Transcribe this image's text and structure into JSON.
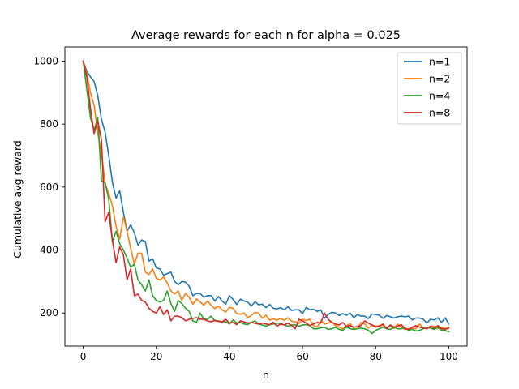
{
  "chart_data": {
    "type": "line",
    "title": "Average rewards for each n for alpha = 0.025",
    "xlabel": "n",
    "ylabel": "Cumulative avg reward",
    "xlim": [
      -5,
      105
    ],
    "ylim": [
      95,
      1045
    ],
    "x_ticks": [
      0,
      20,
      40,
      60,
      80,
      100
    ],
    "y_ticks": [
      200,
      400,
      600,
      800,
      1000
    ],
    "x_tick_labels": [
      "0",
      "20",
      "40",
      "60",
      "80",
      "100"
    ],
    "y_tick_labels": [
      "200",
      "400",
      "600",
      "800",
      "1000"
    ],
    "grid": false,
    "legend_position": "top-right",
    "x": [
      0,
      1,
      2,
      3,
      4,
      5,
      6,
      7,
      8,
      9,
      10,
      11,
      12,
      13,
      14,
      15,
      16,
      17,
      18,
      19,
      20,
      21,
      22,
      23,
      24,
      25,
      26,
      27,
      28,
      29,
      30,
      31,
      32,
      33,
      34,
      35,
      36,
      37,
      38,
      39,
      40,
      41,
      42,
      43,
      44,
      45,
      46,
      47,
      48,
      49,
      50,
      51,
      52,
      53,
      54,
      55,
      56,
      57,
      58,
      59,
      60,
      61,
      62,
      63,
      64,
      65,
      66,
      67,
      68,
      69,
      70,
      71,
      72,
      73,
      74,
      75,
      76,
      77,
      78,
      79,
      80,
      81,
      82,
      83,
      84,
      85,
      86,
      87,
      88,
      89,
      90,
      91,
      92,
      93,
      94,
      95,
      96,
      97,
      98,
      99,
      100
    ],
    "series": [
      {
        "name": "n=1",
        "color": "#1f77b4",
        "values": [
          1000,
          968,
          950,
          935,
          890,
          815,
          775,
          700,
          615,
          565,
          588,
          520,
          460,
          480,
          455,
          415,
          432,
          427,
          365,
          372,
          343,
          340,
          320,
          325,
          330,
          300,
          290,
          300,
          298,
          285,
          255,
          262,
          262,
          250,
          255,
          255,
          238,
          252,
          238,
          228,
          255,
          243,
          227,
          244,
          238,
          235,
          222,
          236,
          226,
          228,
          217,
          227,
          215,
          213,
          217,
          210,
          220,
          208,
          210,
          210,
          198,
          218,
          210,
          212,
          205,
          210,
          183,
          195,
          202,
          200,
          192,
          198,
          193,
          200,
          185,
          195,
          190,
          190,
          182,
          197,
          195,
          193,
          183,
          192,
          188,
          184,
          188,
          190,
          188,
          190,
          178,
          184,
          184,
          180,
          168,
          180,
          178,
          185,
          170,
          185,
          165
        ]
      },
      {
        "name": "n=2",
        "color": "#ff7f0e",
        "values": [
          1000,
          960,
          900,
          860,
          770,
          710,
          610,
          580,
          540,
          475,
          435,
          505,
          460,
          405,
          355,
          390,
          390,
          330,
          322,
          340,
          310,
          305,
          315,
          295,
          270,
          260,
          270,
          240,
          262,
          250,
          228,
          245,
          235,
          225,
          238,
          225,
          214,
          222,
          210,
          203,
          218,
          215,
          198,
          196,
          200,
          185,
          192,
          202,
          200,
          183,
          193,
          177,
          182,
          177,
          183,
          176,
          185,
          174,
          172,
          167,
          180,
          176,
          180,
          160,
          155,
          175,
          165,
          168,
          172,
          160,
          155,
          150,
          158,
          167,
          150,
          150,
          170,
          165,
          152,
          162,
          158,
          160,
          160,
          152,
          160,
          150,
          165,
          155,
          148,
          150,
          152,
          150,
          165,
          152,
          150,
          158,
          158,
          150,
          155,
          150,
          155
        ]
      },
      {
        "name": "n=4",
        "color": "#2ca02c",
        "values": [
          1000,
          910,
          820,
          780,
          822,
          620,
          615,
          560,
          425,
          460,
          420,
          400,
          375,
          345,
          355,
          305,
          290,
          270,
          305,
          255,
          240,
          235,
          240,
          270,
          230,
          205,
          240,
          230,
          215,
          205,
          175,
          170,
          200,
          180,
          180,
          190,
          175,
          175,
          172,
          172,
          165,
          178,
          168,
          170,
          165,
          163,
          170,
          175,
          165,
          162,
          158,
          163,
          165,
          168,
          167,
          162,
          158,
          162,
          162,
          158,
          162,
          163,
          160,
          150,
          150,
          153,
          155,
          148,
          150,
          155,
          148,
          145,
          155,
          150,
          148,
          150,
          152,
          150,
          145,
          135,
          145,
          150,
          155,
          150,
          148,
          155,
          150,
          150,
          153,
          145,
          148,
          143,
          145,
          150,
          153,
          152,
          148,
          155,
          145,
          145,
          140
        ]
      },
      {
        "name": "n=8",
        "color": "#d62728",
        "values": [
          1000,
          950,
          850,
          770,
          810,
          750,
          490,
          520,
          430,
          360,
          410,
          385,
          305,
          340,
          255,
          260,
          240,
          235,
          215,
          205,
          200,
          220,
          195,
          210,
          175,
          190,
          190,
          185,
          175,
          180,
          183,
          185,
          180,
          180,
          175,
          172,
          177,
          173,
          172,
          180,
          168,
          170,
          163,
          175,
          172,
          168,
          170,
          167,
          165,
          168,
          165,
          163,
          170,
          158,
          165,
          162,
          168,
          160,
          150,
          180,
          175,
          168,
          160,
          165,
          170,
          168,
          200,
          180,
          170,
          165,
          162,
          170,
          158,
          160,
          155,
          157,
          160,
          175,
          168,
          162,
          155,
          158,
          165,
          150,
          162,
          155,
          158,
          163,
          150,
          148,
          155,
          160,
          155,
          152,
          150,
          158,
          152,
          160,
          150,
          148,
          152
        ]
      }
    ]
  }
}
